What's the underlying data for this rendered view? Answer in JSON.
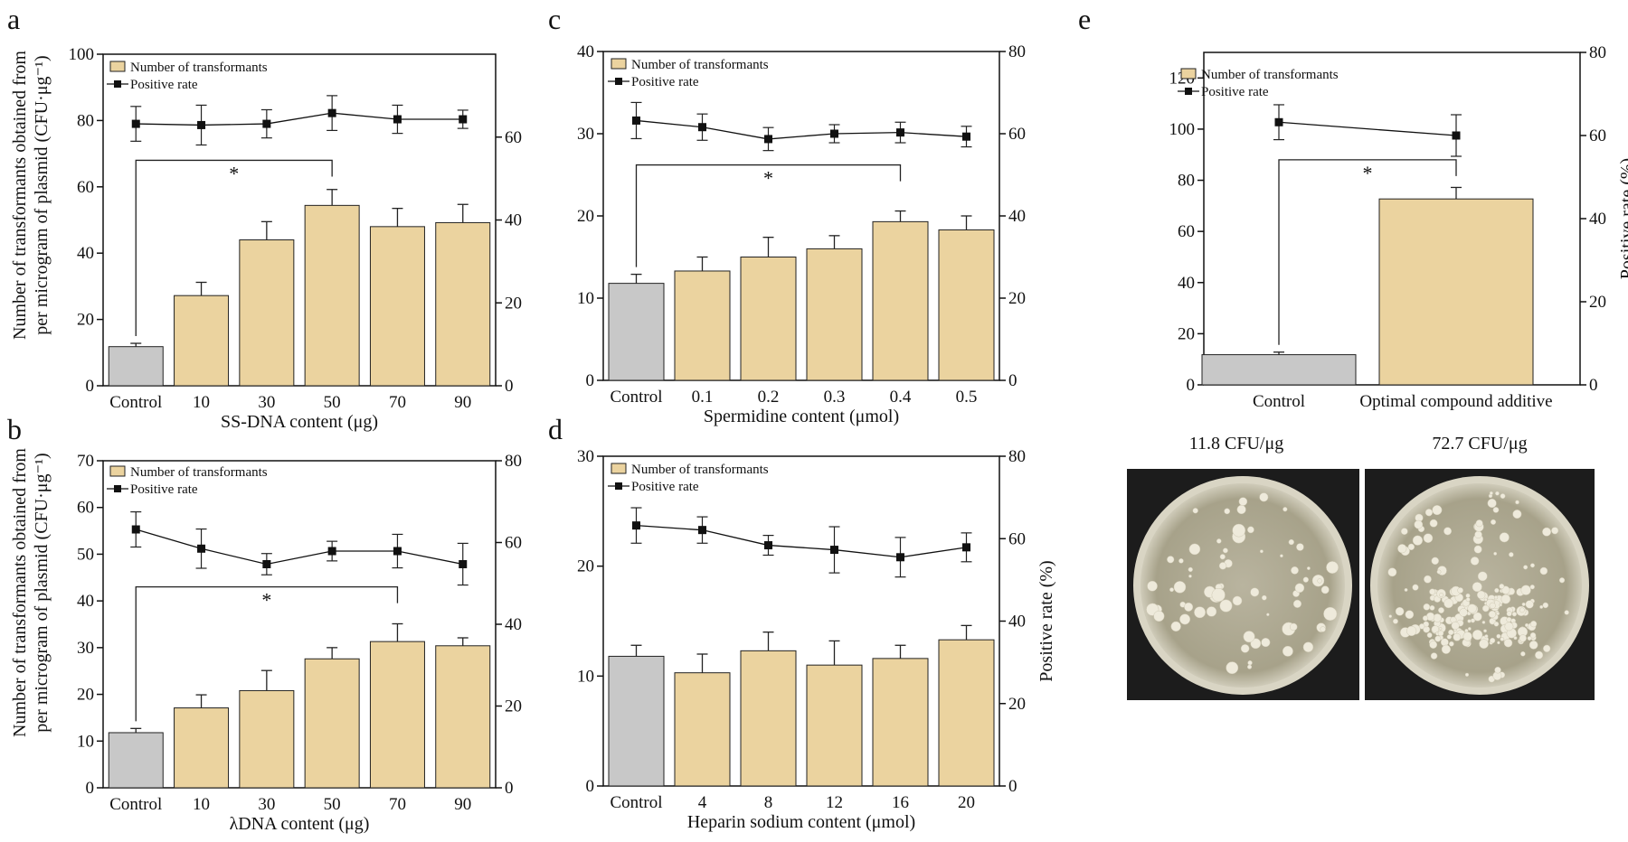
{
  "colors": {
    "bar": "#ebd39f",
    "control": "#c8c8c8",
    "line": "#111111"
  },
  "shared_ylabel_lines": [
    "Number of transformants obtained from",
    "per microgram of plasmid (CFU·μg⁻¹)"
  ],
  "right_ylabel": "Positive rate (%)",
  "plate_captions": [
    "11.8 CFU/μg",
    "72.7 CFU/μg"
  ],
  "chart_data": [
    {
      "panel": "a",
      "type": "bar",
      "xlabel": "SS-DNA content (μg)",
      "categories": [
        "Control",
        "10",
        "30",
        "50",
        "70",
        "90"
      ],
      "legend": [
        "Number of transformants",
        "Positive rate"
      ],
      "bar_values": [
        11.8,
        27.2,
        44.0,
        54.4,
        48.0,
        49.2
      ],
      "bar_err": [
        1.0,
        4.0,
        5.5,
        4.8,
        5.5,
        5.5
      ],
      "rate_values": [
        63.2,
        62.9,
        63.2,
        65.8,
        64.3,
        64.3
      ],
      "rate_err": [
        4.2,
        4.8,
        3.4,
        4.2,
        3.4,
        2.2
      ],
      "ylim_left": [
        0,
        100
      ],
      "yticks_left": [
        0,
        20,
        40,
        60,
        80,
        100
      ],
      "ylim_right": [
        0,
        80
      ],
      "yticks_right": [
        0,
        20,
        40,
        60
      ],
      "sig": {
        "from": 0,
        "to": 3,
        "y": 68,
        "label": "*"
      },
      "show_right_label": false
    },
    {
      "panel": "b",
      "type": "bar",
      "xlabel": "λDNA content (μg)",
      "categories": [
        "Control",
        "10",
        "30",
        "50",
        "70",
        "90"
      ],
      "legend": [
        "Number of transformants",
        "Positive rate"
      ],
      "bar_values": [
        11.8,
        17.1,
        20.8,
        27.6,
        31.3,
        30.4
      ],
      "bar_err": [
        0.9,
        2.8,
        4.3,
        2.4,
        3.8,
        1.7
      ],
      "rate_values": [
        63.2,
        58.5,
        54.7,
        57.9,
        57.9,
        54.7
      ],
      "rate_err": [
        4.3,
        4.8,
        2.6,
        2.4,
        4.1,
        5.1
      ],
      "ylim_left": [
        0,
        70
      ],
      "yticks_left": [
        0,
        10,
        20,
        30,
        40,
        50,
        60,
        70
      ],
      "ylim_right": [
        0,
        80
      ],
      "yticks_right": [
        0,
        20,
        40,
        60,
        80
      ],
      "sig": {
        "from": 0,
        "to": 4,
        "y": 43,
        "label": "*"
      },
      "show_right_label": false
    },
    {
      "panel": "c",
      "type": "bar",
      "xlabel": "Spermidine content (μmol)",
      "categories": [
        "Control",
        "0.1",
        "0.2",
        "0.3",
        "0.4",
        "0.5"
      ],
      "legend": [
        "Number of transformants",
        "Positive rate"
      ],
      "bar_values": [
        11.8,
        13.3,
        15.0,
        16.0,
        19.3,
        18.3
      ],
      "bar_err": [
        1.1,
        1.7,
        2.4,
        1.6,
        1.3,
        1.7
      ],
      "rate_values": [
        63.2,
        61.6,
        58.7,
        60.0,
        60.3,
        59.3
      ],
      "rate_err": [
        4.4,
        3.2,
        2.8,
        2.2,
        2.5,
        2.5
      ],
      "ylim_left": [
        0,
        40
      ],
      "yticks_left": [
        0,
        10,
        20,
        30,
        40
      ],
      "ylim_right": [
        0,
        80
      ],
      "yticks_right": [
        0,
        20,
        40,
        60,
        80
      ],
      "sig": {
        "from": 0,
        "to": 4,
        "y": 26.2,
        "label": "*"
      },
      "show_right_label": false
    },
    {
      "panel": "d",
      "type": "bar",
      "xlabel": "Heparin sodium content (μmol)",
      "categories": [
        "Control",
        "4",
        "8",
        "12",
        "16",
        "20"
      ],
      "legend": [
        "Number of transformants",
        "Positive rate"
      ],
      "bar_values": [
        11.8,
        10.3,
        12.3,
        11.0,
        11.6,
        13.3
      ],
      "bar_err": [
        1.0,
        1.7,
        1.7,
        2.2,
        1.2,
        1.3
      ],
      "rate_values": [
        63.2,
        62.1,
        58.4,
        57.3,
        55.5,
        57.9
      ],
      "rate_err": [
        4.3,
        3.2,
        2.4,
        5.6,
        4.8,
        3.5
      ],
      "ylim_left": [
        0,
        30
      ],
      "yticks_left": [
        0,
        10,
        20,
        30
      ],
      "ylim_right": [
        0,
        80
      ],
      "yticks_right": [
        0,
        20,
        40,
        60,
        80
      ],
      "sig": null,
      "show_right_label": true
    },
    {
      "panel": "e",
      "type": "bar",
      "xlabel": "",
      "categories": [
        "Control",
        "Optimal compound additive"
      ],
      "legend": [
        "Number of transformants",
        "Positive rate"
      ],
      "bar_values": [
        11.8,
        72.7
      ],
      "bar_err": [
        1.0,
        4.5
      ],
      "rate_values": [
        63.2,
        60.0
      ],
      "rate_err": [
        4.2,
        5.0
      ],
      "ylim_left": [
        0,
        130
      ],
      "yticks_left": [
        0,
        20,
        40,
        60,
        80,
        100,
        120
      ],
      "ylim_right": [
        0,
        80
      ],
      "yticks_right": [
        0,
        20,
        40,
        60,
        80
      ],
      "sig": {
        "from": 0,
        "to": 1,
        "y": 88,
        "label": "*"
      },
      "show_right_label": true
    }
  ]
}
